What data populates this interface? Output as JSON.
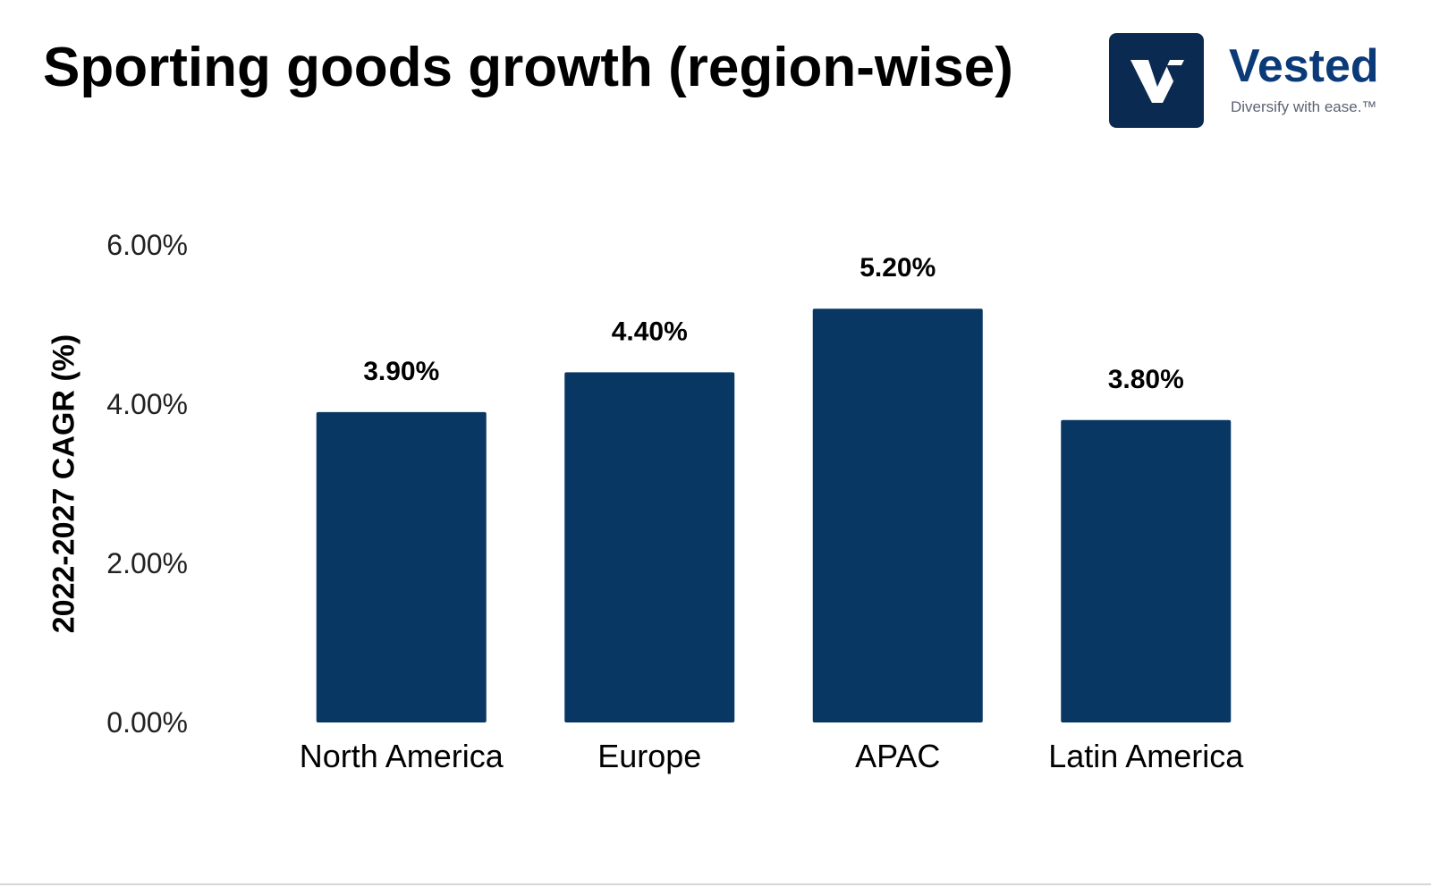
{
  "title": "Sporting goods growth (region-wise)",
  "brand": {
    "name": "Vested",
    "tagline": "Diversify with ease.™",
    "logo_color": "#0a2a52",
    "name_color": "#0b3a78"
  },
  "chart_data": {
    "type": "bar",
    "categories": [
      "North America",
      "Europe",
      "APAC",
      "Latin America"
    ],
    "values": [
      3.9,
      4.4,
      5.2,
      3.8
    ],
    "data_labels": [
      "3.90%",
      "4.40%",
      "5.20%",
      "3.80%"
    ],
    "ylabel": "2022-2027 CAGR (%)",
    "ylim": [
      0,
      6
    ],
    "yticks": [
      0,
      2,
      4,
      6
    ],
    "ytick_labels": [
      "0.00%",
      "2.00%",
      "4.00%",
      "6.00%"
    ],
    "bar_color": "#093763",
    "grid": false,
    "legend": "none"
  }
}
